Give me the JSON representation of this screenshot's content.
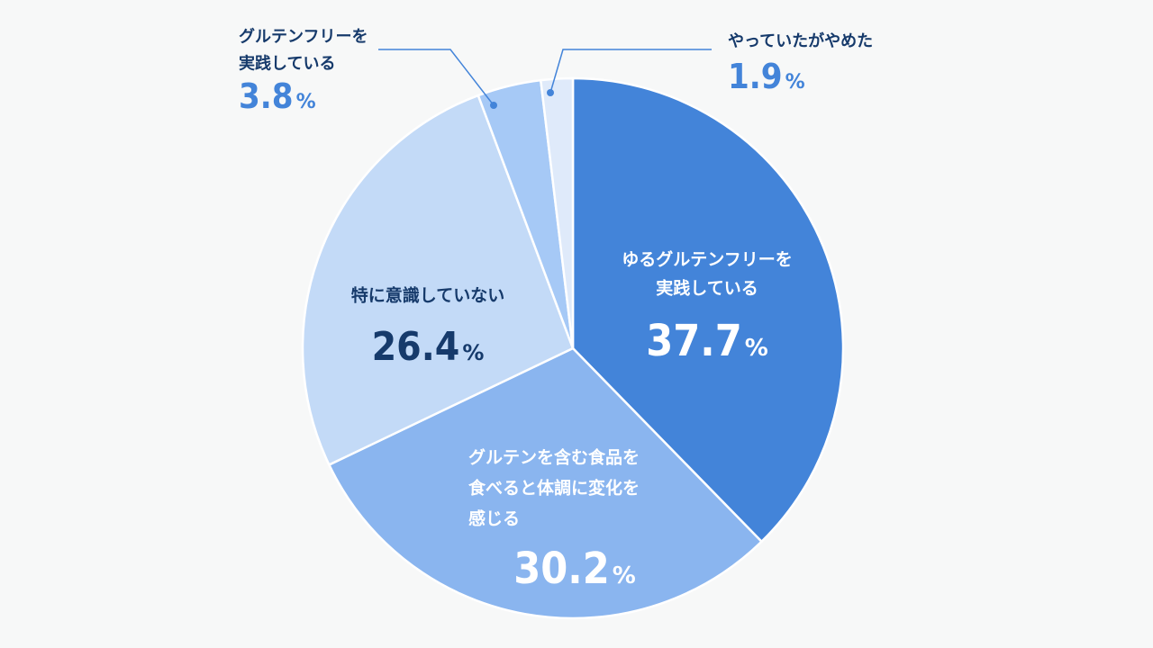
{
  "chart_data": {
    "type": "pie",
    "unit": "%",
    "slices": [
      {
        "label_lines": [
          "ゆるグルテンフリーを",
          "実践している"
        ],
        "value": 37.7,
        "value_text": "37.7",
        "color": "#4384d9",
        "label_color": "#ffffff"
      },
      {
        "label_lines": [
          "グルテンを含む食品を",
          "食べると体調に変化を",
          "感じる"
        ],
        "value": 30.2,
        "value_text": "30.2",
        "color": "#8ab5ef",
        "label_color": "#ffffff"
      },
      {
        "label_lines": [
          "特に意識していない"
        ],
        "value": 26.4,
        "value_text": "26.4",
        "color": "#c3daf7",
        "label_color": "#163a6b"
      },
      {
        "label_lines": [
          "グルテンフリーを",
          "実践している"
        ],
        "value": 3.8,
        "value_text": "3.8",
        "color": "#a6c9f6",
        "label_color": "#163a6b",
        "pct_color": "#4384d9"
      },
      {
        "label_lines": [
          "やっていたがやめた"
        ],
        "value": 1.9,
        "value_text": "1.9",
        "color": "#dfeafa",
        "label_color": "#163a6b",
        "pct_color": "#4384d9"
      }
    ]
  }
}
